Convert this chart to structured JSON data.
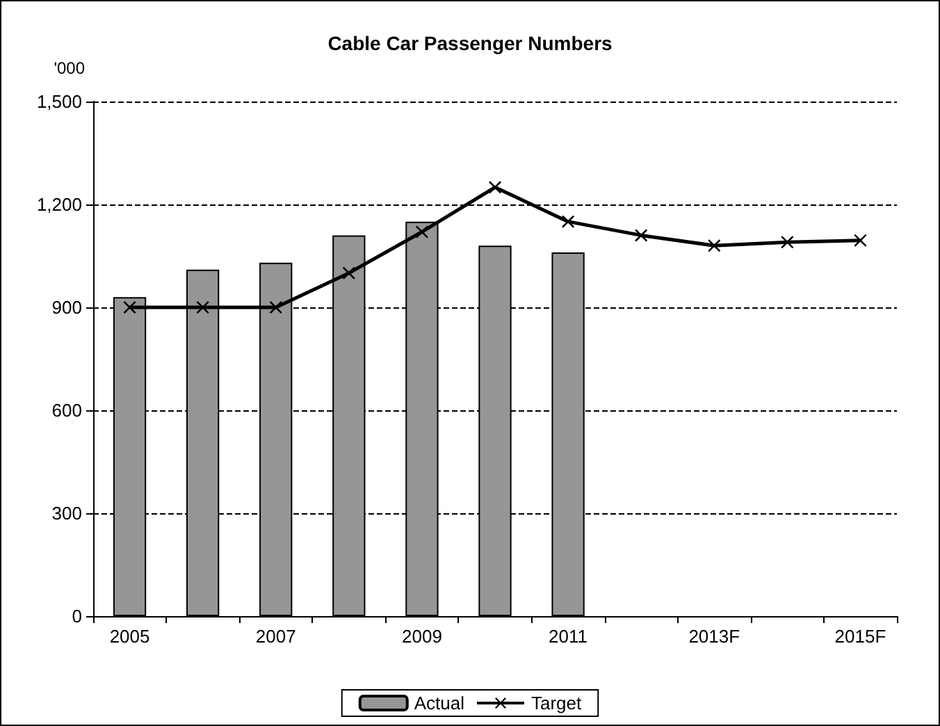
{
  "chart_data": {
    "type": "bar",
    "title": "Cable Car Passenger Numbers",
    "ylabel": "'000",
    "categories": [
      "2005",
      null,
      "2007",
      null,
      "2009",
      null,
      "2011",
      null,
      "2013F",
      null,
      "2015F"
    ],
    "series": [
      {
        "name": "Actual",
        "color": "#969696",
        "values": [
          930,
          1010,
          1030,
          1110,
          1150,
          1080,
          1060,
          null,
          null,
          null,
          null
        ]
      },
      {
        "name": "Target",
        "type": "line",
        "color": "#000000",
        "marker": "cross",
        "line_style": "solid",
        "values": [
          900,
          900,
          900,
          1000,
          1120,
          1250,
          1150,
          1110,
          1080,
          1090,
          1095
        ]
      }
    ],
    "ylim": [
      0,
      1500
    ],
    "yticks": [
      0,
      300,
      600,
      900,
      {
        "value": 1200,
        "label": "1,200"
      },
      {
        "value": 1500,
        "label": "1,500"
      }
    ],
    "grid": "y",
    "legend": "bottom"
  }
}
